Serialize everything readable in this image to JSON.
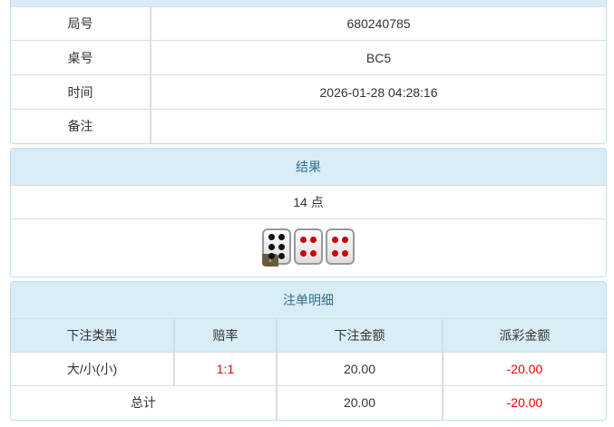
{
  "info": {
    "rows": [
      {
        "label": "局号",
        "value": "680240785"
      },
      {
        "label": "桌号",
        "value": "BC5"
      },
      {
        "label": "时间",
        "value": "2026-01-28 04:28:16"
      },
      {
        "label": "备注",
        "value": ""
      }
    ]
  },
  "result": {
    "title": "结果",
    "points": "14 点",
    "dice": [
      6,
      4,
      4
    ],
    "info_badge": "i"
  },
  "bets": {
    "title": "注单明细",
    "headers": [
      "下注类型",
      "赔率",
      "下注金额",
      "派彩金额"
    ],
    "rows": [
      {
        "type": "大/小(小)",
        "odds": "1:1",
        "amount": "20.00",
        "payout": "-20.00"
      }
    ],
    "total": {
      "label": "总计",
      "amount": "20.00",
      "payout": "-20.00"
    }
  },
  "colors": {
    "header_bg": "#d9edf7",
    "negative": "#e00000",
    "die_black": "#111111",
    "die_red": "#cc0000"
  }
}
